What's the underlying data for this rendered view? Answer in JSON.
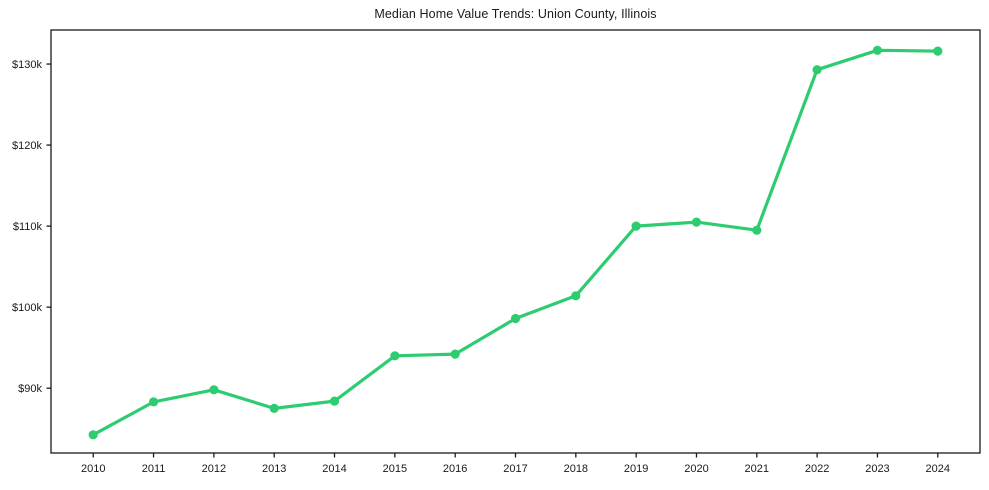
{
  "chart_data": {
    "type": "line",
    "title": "Median Home Value Trends: Union County, Illinois",
    "series_name": "Median Home Value",
    "x": [
      2010,
      2011,
      2012,
      2013,
      2014,
      2015,
      2016,
      2017,
      2018,
      2019,
      2020,
      2021,
      2022,
      2023,
      2024
    ],
    "values": [
      84250,
      88300,
      89800,
      87500,
      88400,
      94000,
      94200,
      98600,
      101400,
      110000,
      110500,
      109500,
      129300,
      131700,
      131600
    ],
    "x_tick_labels": [
      "2010",
      "2011",
      "2012",
      "2013",
      "2014",
      "2015",
      "2016",
      "2017",
      "2018",
      "2019",
      "2020",
      "2021",
      "2022",
      "2023",
      "2024"
    ],
    "y_ticks": [
      90000,
      100000,
      110000,
      120000,
      130000
    ],
    "y_tick_labels": [
      "$90k",
      "$100k",
      "$110k",
      "$120k",
      "$130k"
    ],
    "xlabel": "",
    "ylabel": "",
    "xlim": [
      2009.3,
      2024.7
    ],
    "ylim": [
      82000,
      134200
    ],
    "grid": false,
    "legend": false,
    "line_color": "#2ecc71",
    "marker": "circle",
    "axis_color": "#1a1a1a",
    "background_color": "#ffffff"
  }
}
